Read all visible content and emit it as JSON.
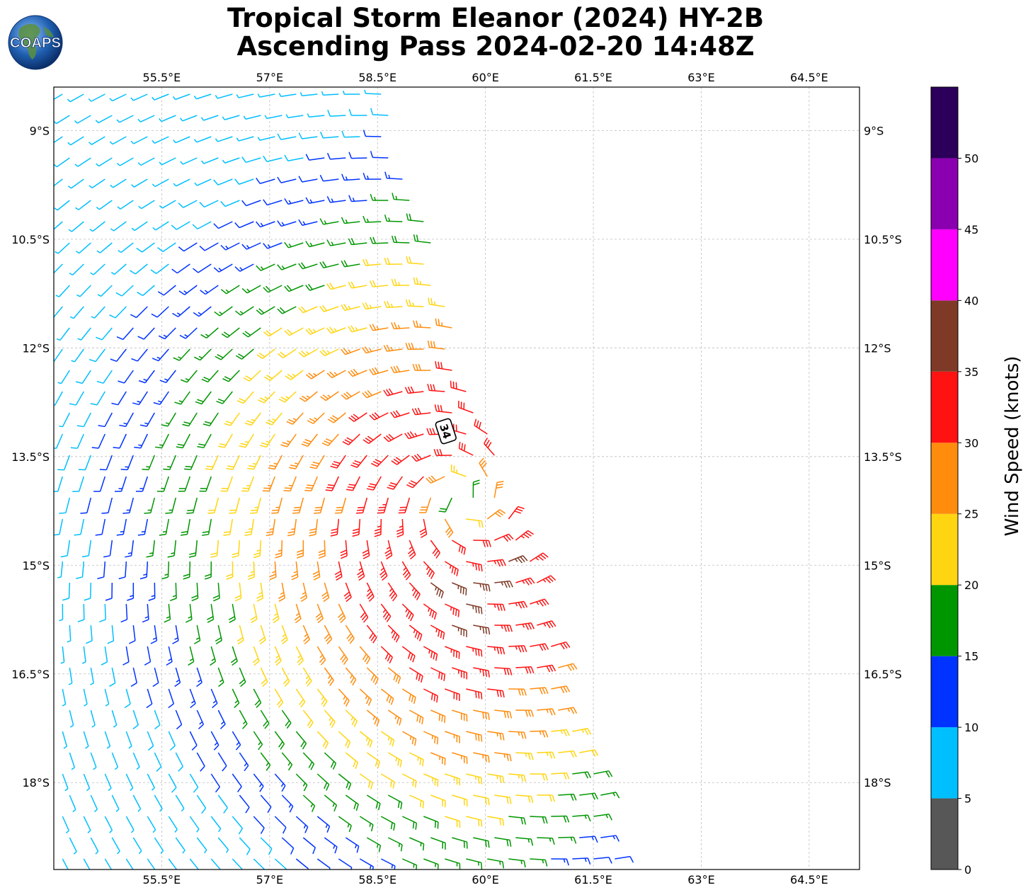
{
  "title": {
    "line1": "Tropical Storm Eleanor (2024) HY-2B",
    "line2": "Ascending Pass 2024-02-20 14:48Z"
  },
  "logo": {
    "text": "COAPS",
    "ocean_color": "#1f5fb0",
    "land_color": "#5a8f3c"
  },
  "map": {
    "lon_range": [
      54.0,
      65.2
    ],
    "lat_range": [
      -8.4,
      -19.2
    ],
    "lon_ticks": [
      {
        "value": 55.5,
        "label": "55.5°E"
      },
      {
        "value": 57.0,
        "label": "57°E"
      },
      {
        "value": 58.5,
        "label": "58.5°E"
      },
      {
        "value": 60.0,
        "label": "60°E"
      },
      {
        "value": 61.5,
        "label": "61.5°E"
      },
      {
        "value": 63.0,
        "label": "63°E"
      },
      {
        "value": 64.5,
        "label": "64.5°E"
      }
    ],
    "lat_ticks": [
      {
        "value": -9.0,
        "label": "9°S"
      },
      {
        "value": -10.5,
        "label": "10.5°S"
      },
      {
        "value": -12.0,
        "label": "12°S"
      },
      {
        "value": -13.5,
        "label": "13.5°S"
      },
      {
        "value": -15.0,
        "label": "15°S"
      },
      {
        "value": -16.5,
        "label": "16.5°S"
      },
      {
        "value": -18.0,
        "label": "18°S"
      }
    ],
    "grid": true,
    "storm_center": {
      "lon": 59.7,
      "lat": -14.1
    },
    "intensity_marker": {
      "lon": 59.45,
      "lat": -13.15,
      "label": "34"
    }
  },
  "colorbar": {
    "label": "Wind Speed (knots)",
    "bins": [
      {
        "from": 0,
        "to": 5,
        "color": "#575757"
      },
      {
        "from": 5,
        "to": 10,
        "color": "#00bfff"
      },
      {
        "from": 10,
        "to": 15,
        "color": "#0033ff"
      },
      {
        "from": 15,
        "to": 20,
        "color": "#009600"
      },
      {
        "from": 20,
        "to": 25,
        "color": "#ffd511"
      },
      {
        "from": 25,
        "to": 30,
        "color": "#ff8c0d"
      },
      {
        "from": 30,
        "to": 35,
        "color": "#ff1212"
      },
      {
        "from": 35,
        "to": 40,
        "color": "#7f3a27"
      },
      {
        "from": 40,
        "to": 45,
        "color": "#ff00ff"
      },
      {
        "from": 45,
        "to": 50,
        "color": "#8a00b0"
      },
      {
        "from": 50,
        "to": 55,
        "color": "#2c005a"
      }
    ],
    "tick_labels": [
      "0",
      "5",
      "10",
      "15",
      "20",
      "25",
      "30",
      "35",
      "40",
      "45",
      "50"
    ]
  }
}
